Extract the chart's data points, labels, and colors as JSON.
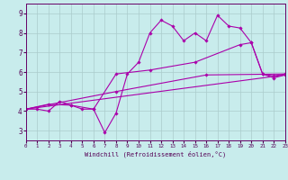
{
  "background_color": "#c8ecec",
  "line_color": "#aa00aa",
  "grid_color": "#aacccc",
  "xlabel": "Windchill (Refroidissement éolien,°C)",
  "xlim": [
    0,
    23
  ],
  "ylim": [
    2.5,
    9.5
  ],
  "xticks": [
    0,
    1,
    2,
    3,
    4,
    5,
    6,
    7,
    8,
    9,
    10,
    11,
    12,
    13,
    14,
    15,
    16,
    17,
    18,
    19,
    20,
    21,
    22,
    23
  ],
  "yticks": [
    3,
    4,
    5,
    6,
    7,
    8,
    9
  ],
  "series": [
    {
      "x": [
        0,
        1,
        2,
        3,
        4,
        5,
        6,
        7,
        8,
        9,
        10,
        11,
        12,
        13,
        14,
        15,
        16,
        17,
        18,
        19,
        20,
        21,
        22,
        23
      ],
      "y": [
        4.1,
        4.1,
        4.0,
        4.5,
        4.3,
        4.1,
        4.1,
        2.9,
        3.9,
        5.9,
        6.5,
        8.0,
        8.65,
        8.35,
        7.6,
        8.0,
        7.6,
        8.9,
        8.35,
        8.25,
        7.5,
        5.9,
        5.8,
        5.9
      ]
    },
    {
      "x": [
        0,
        2,
        4,
        6,
        8,
        11,
        15,
        19,
        20,
        21,
        22,
        23
      ],
      "y": [
        4.1,
        4.35,
        4.3,
        4.1,
        5.9,
        6.1,
        6.5,
        7.4,
        7.5,
        5.9,
        5.7,
        5.85
      ]
    },
    {
      "x": [
        0,
        23
      ],
      "y": [
        4.1,
        5.85
      ]
    },
    {
      "x": [
        0,
        8,
        16,
        23
      ],
      "y": [
        4.1,
        5.0,
        5.85,
        5.9
      ]
    }
  ]
}
